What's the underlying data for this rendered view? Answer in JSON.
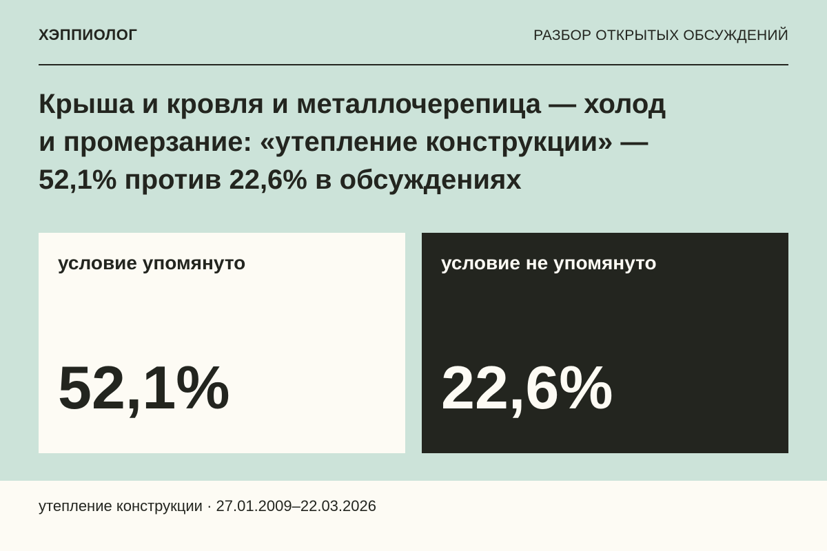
{
  "header": {
    "brand": "ХЭППИОЛОГ",
    "section": "РАЗБОР ОТКРЫТЫХ ОБСУЖДЕНИЙ"
  },
  "headline": {
    "line1": "Крыша и кровля и металлочерепица — холод",
    "line2": "и промерзание: «утепление конструкции» —",
    "line3": "52,1% против 22,6% в обсуждениях"
  },
  "cards": [
    {
      "label": "условие упомянуто",
      "value": "52,1%",
      "bg": "#fdfbf4",
      "fg": "#23251f"
    },
    {
      "label": "условие не упомянуто",
      "value": "22,6%",
      "bg": "#23251f",
      "fg": "#fdfbf4"
    }
  ],
  "footer": {
    "text": "утепление конструкции · 27.01.2009–22.03.2026"
  },
  "colors": {
    "background": "#cce3d9",
    "dark": "#23251f",
    "light": "#fdfbf4"
  }
}
